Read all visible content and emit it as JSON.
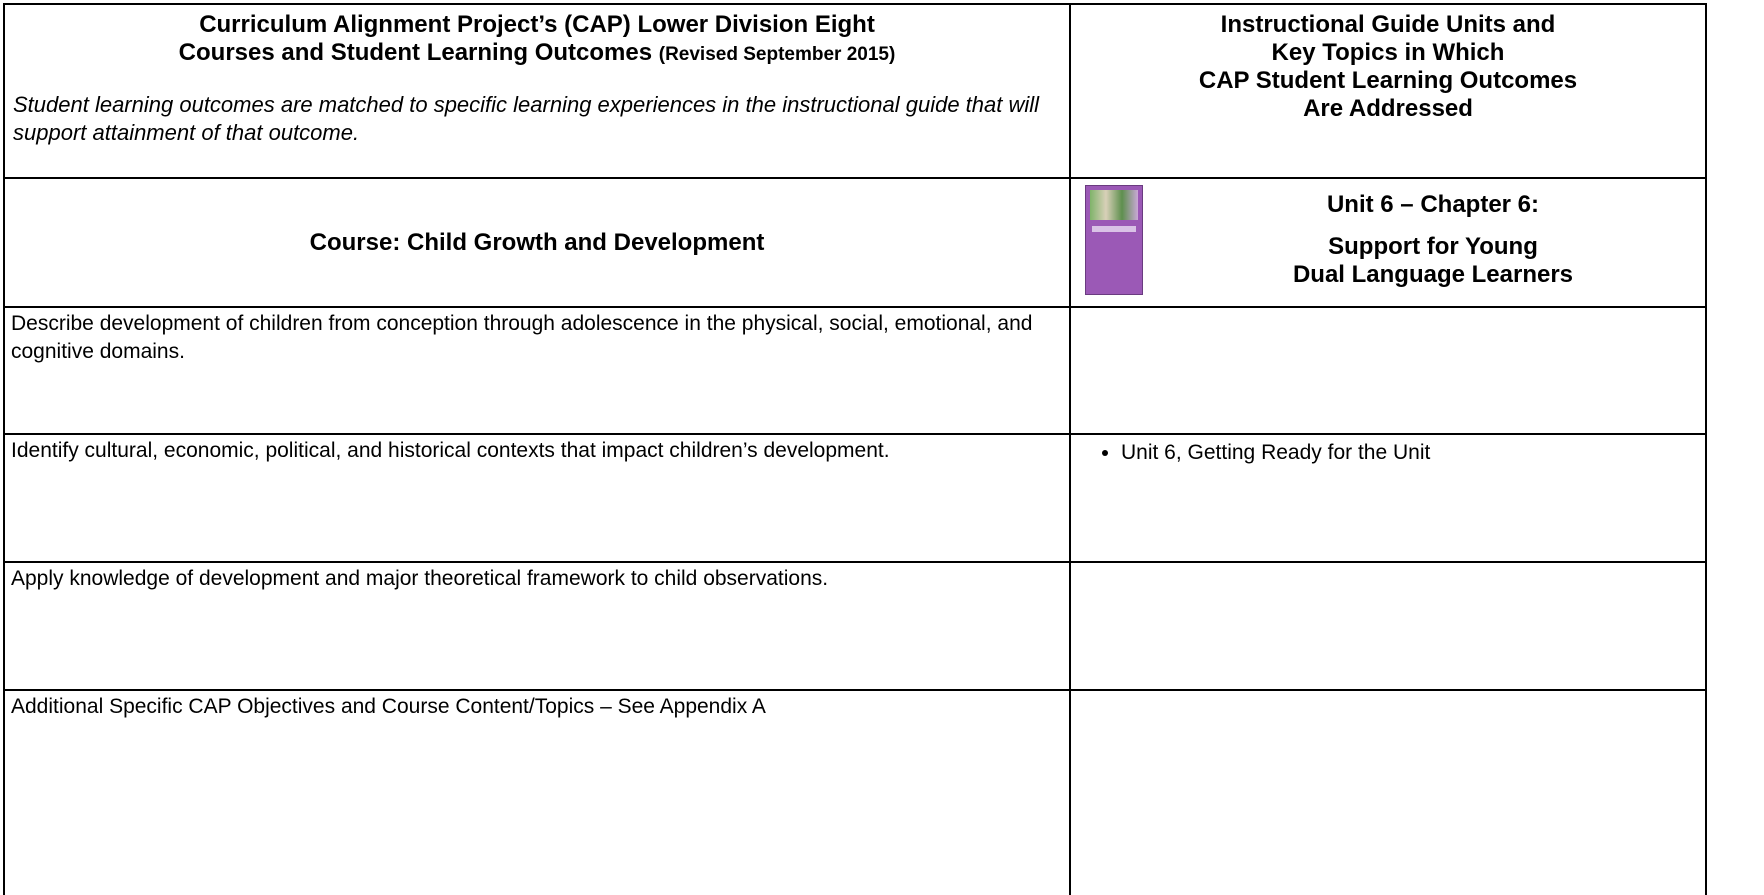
{
  "header": {
    "left_title_lines": [
      "Curriculum Alignment Project’s (CAP) Lower Division Eight",
      "Courses and Student Learning Outcomes"
    ],
    "left_subtitle": "(Revised September 2015)",
    "left_note": "Student learning outcomes are matched to specific learning experiences in the instructional guide that will support attainment of that outcome.",
    "right_title_lines": [
      "Instructional Guide Units and",
      "Key Topics in Which",
      "CAP Student Learning Outcomes",
      "Are Addressed"
    ]
  },
  "course_row": {
    "course": "Course:  Child Growth and Development",
    "unit_heading": "Unit 6 – Chapter 6:",
    "unit_title_lines": [
      "Support for Young",
      "Dual Language Learners"
    ]
  },
  "rows": [
    {
      "outcome": "Describe development of children from conception through adolescence in the physical, social, emotional, and cognitive domains.",
      "topics": []
    },
    {
      "outcome": "Identify cultural, economic, political, and historical contexts that impact children’s development.",
      "topics": [
        "Unit 6, Getting Ready for the Unit"
      ]
    },
    {
      "outcome": "Apply knowledge of development and major theoretical framework to child observations.",
      "topics": []
    },
    {
      "outcome": "Additional Specific CAP Objectives and Course Content/Topics – See Appendix A",
      "topics": []
    }
  ]
}
